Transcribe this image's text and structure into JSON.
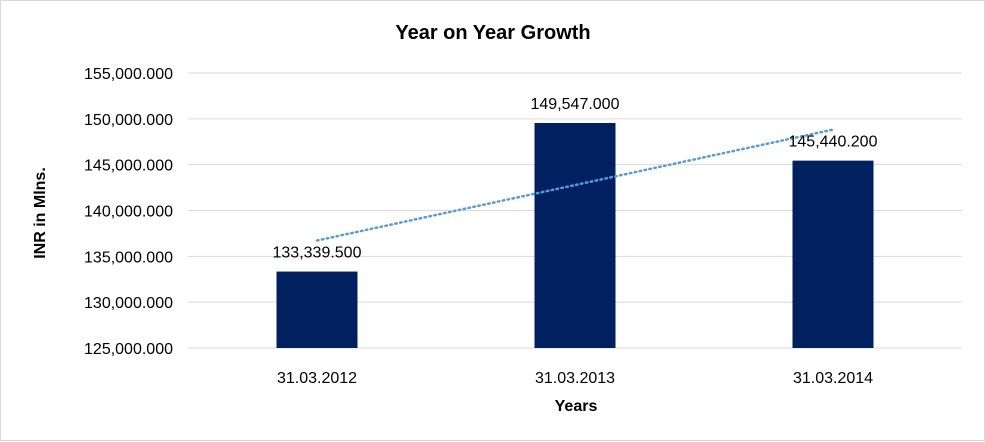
{
  "chart_data": {
    "type": "bar",
    "title": "Year on Year Growth",
    "xlabel": "Years",
    "ylabel": "INR in Mlns.",
    "categories": [
      "31.03.2012",
      "31.03.2013",
      "31.03.2014"
    ],
    "values": [
      133339.5,
      149547.0,
      145440.2
    ],
    "data_labels": [
      "133,339.500",
      "149,547.000",
      "145,440.200"
    ],
    "y_ticks": [
      125000,
      130000,
      135000,
      140000,
      145000,
      150000,
      155000
    ],
    "y_tick_labels": [
      "125,000.000",
      "130,000.000",
      "135,000.000",
      "140,000.000",
      "145,000.000",
      "150,000.000",
      "155,000.000"
    ],
    "ylim": [
      125000,
      155000
    ],
    "grid": true,
    "legend": "none",
    "trendline": {
      "type": "linear",
      "style": "dotted"
    },
    "colors": {
      "bar": "#002060",
      "trendline": "#5b9bd5",
      "grid": "#d9d9d9"
    }
  }
}
